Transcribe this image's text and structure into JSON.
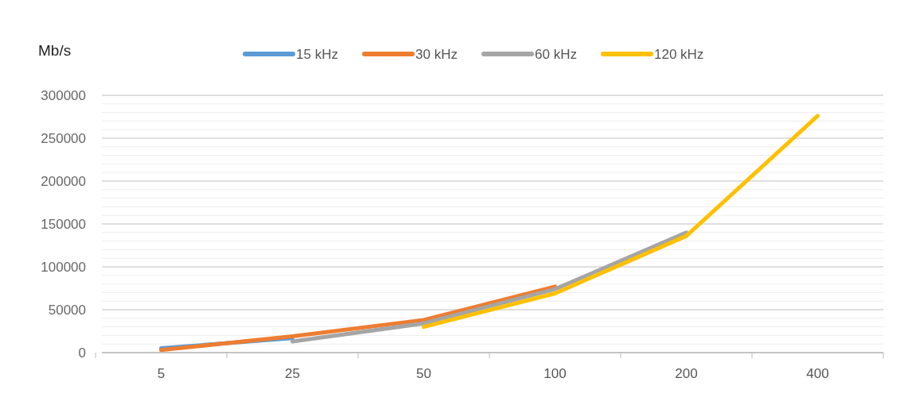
{
  "chart_data": {
    "type": "line",
    "ylabel": "Mb/s",
    "categories": [
      "5",
      "25",
      "50",
      "100",
      "200",
      "400"
    ],
    "series": [
      {
        "name": "15 kHz",
        "color": "#5b9bd5",
        "values": [
          5000,
          17000,
          null,
          null,
          null,
          null
        ]
      },
      {
        "name": "30 kHz",
        "color": "#ed7d31",
        "values": [
          3000,
          19000,
          38000,
          77000,
          null,
          null
        ]
      },
      {
        "name": "60 kHz",
        "color": "#a5a5a5",
        "values": [
          null,
          13000,
          34000,
          74000,
          140000,
          null
        ]
      },
      {
        "name": "120 kHz",
        "color": "#ffc000",
        "values": [
          null,
          null,
          30000,
          69000,
          136000,
          276000
        ]
      }
    ],
    "ylim": [
      0,
      300000
    ],
    "yticks": [
      0,
      50000,
      100000,
      150000,
      200000,
      250000,
      300000
    ],
    "grid": "y",
    "legend": "top",
    "line_style": "solid"
  }
}
